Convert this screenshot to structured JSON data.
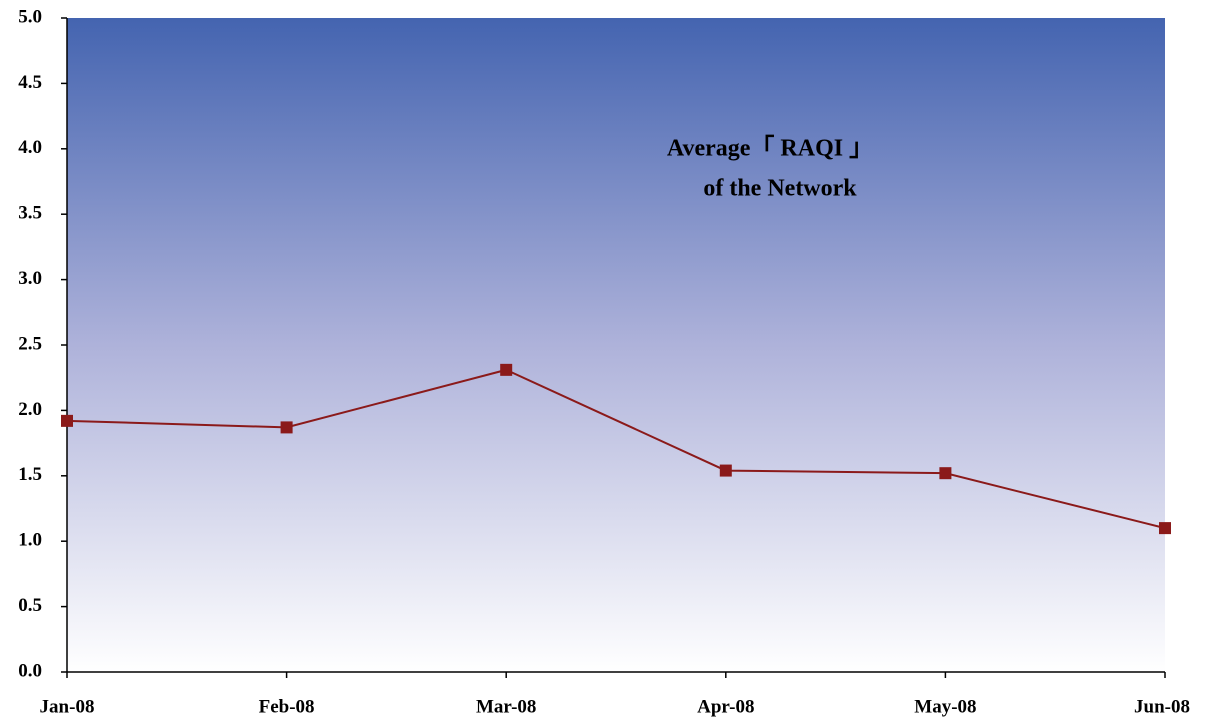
{
  "chart_data": {
    "type": "line",
    "title_lines": [
      "Average「 RAQI 」",
      "of the Network"
    ],
    "categories": [
      "Jan-08",
      "Feb-08",
      "Mar-08",
      "Apr-08",
      "May-08",
      "Jun-08"
    ],
    "series": [
      {
        "name": "Average RAQI",
        "color": "#8b1a1a",
        "values": [
          1.92,
          1.87,
          2.31,
          1.54,
          1.52,
          1.1
        ]
      }
    ],
    "ylim": [
      0,
      5
    ],
    "yticks": [
      {
        "value": 0,
        "label": "0.0"
      },
      {
        "value": 0.5,
        "label": "0.5"
      },
      {
        "value": 1,
        "label": "1.0"
      },
      {
        "value": 1.5,
        "label": "1.5"
      },
      {
        "value": 2,
        "label": "2.0"
      },
      {
        "value": 2.5,
        "label": "2.5"
      },
      {
        "value": 3,
        "label": "3.0"
      },
      {
        "value": 3.5,
        "label": "3.5"
      },
      {
        "value": 4,
        "label": "4.0"
      },
      {
        "value": 4.5,
        "label": "4.5"
      },
      {
        "value": 5,
        "label": "5.0"
      }
    ],
    "grid": false
  }
}
